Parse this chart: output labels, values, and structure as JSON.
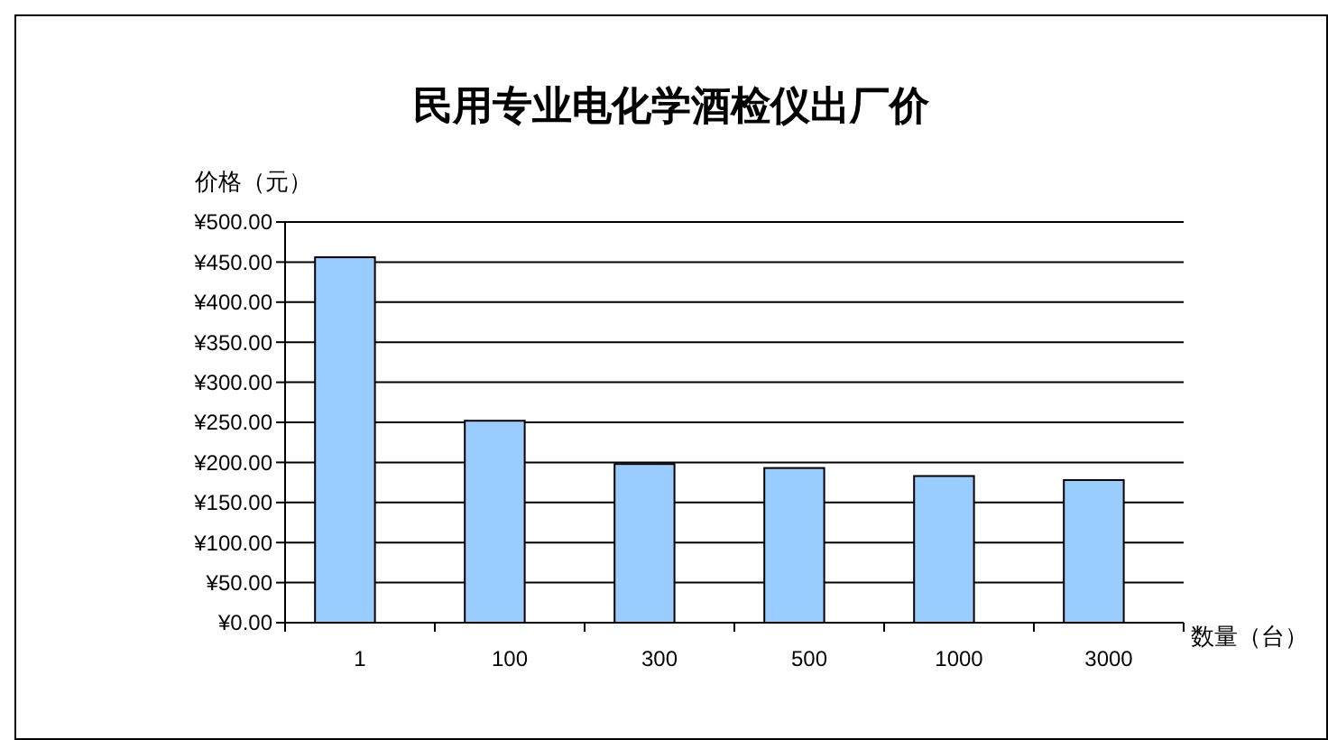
{
  "chart_data": {
    "type": "bar",
    "title": "民用专业电化学酒检仪出厂价",
    "xlabel": "数量（台）",
    "ylabel": "价格（元）",
    "categories": [
      "1",
      "100",
      "300",
      "500",
      "1000",
      "3000"
    ],
    "values": [
      456,
      252,
      198,
      193,
      183,
      178
    ],
    "color": "#99ccff",
    "ylim": [
      0,
      500
    ],
    "yticks": [
      {
        "value": 0,
        "label": "¥0.00"
      },
      {
        "value": 50,
        "label": "¥50.00"
      },
      {
        "value": 100,
        "label": "¥100.00"
      },
      {
        "value": 150,
        "label": "¥150.00"
      },
      {
        "value": 200,
        "label": "¥200.00"
      },
      {
        "value": 250,
        "label": "¥250.00"
      },
      {
        "value": 300,
        "label": "¥300.00"
      },
      {
        "value": 350,
        "label": "¥350.00"
      },
      {
        "value": 400,
        "label": "¥400.00"
      },
      {
        "value": 450,
        "label": "¥450.00"
      },
      {
        "value": 500,
        "label": "¥500.00"
      }
    ],
    "grid": "y"
  }
}
